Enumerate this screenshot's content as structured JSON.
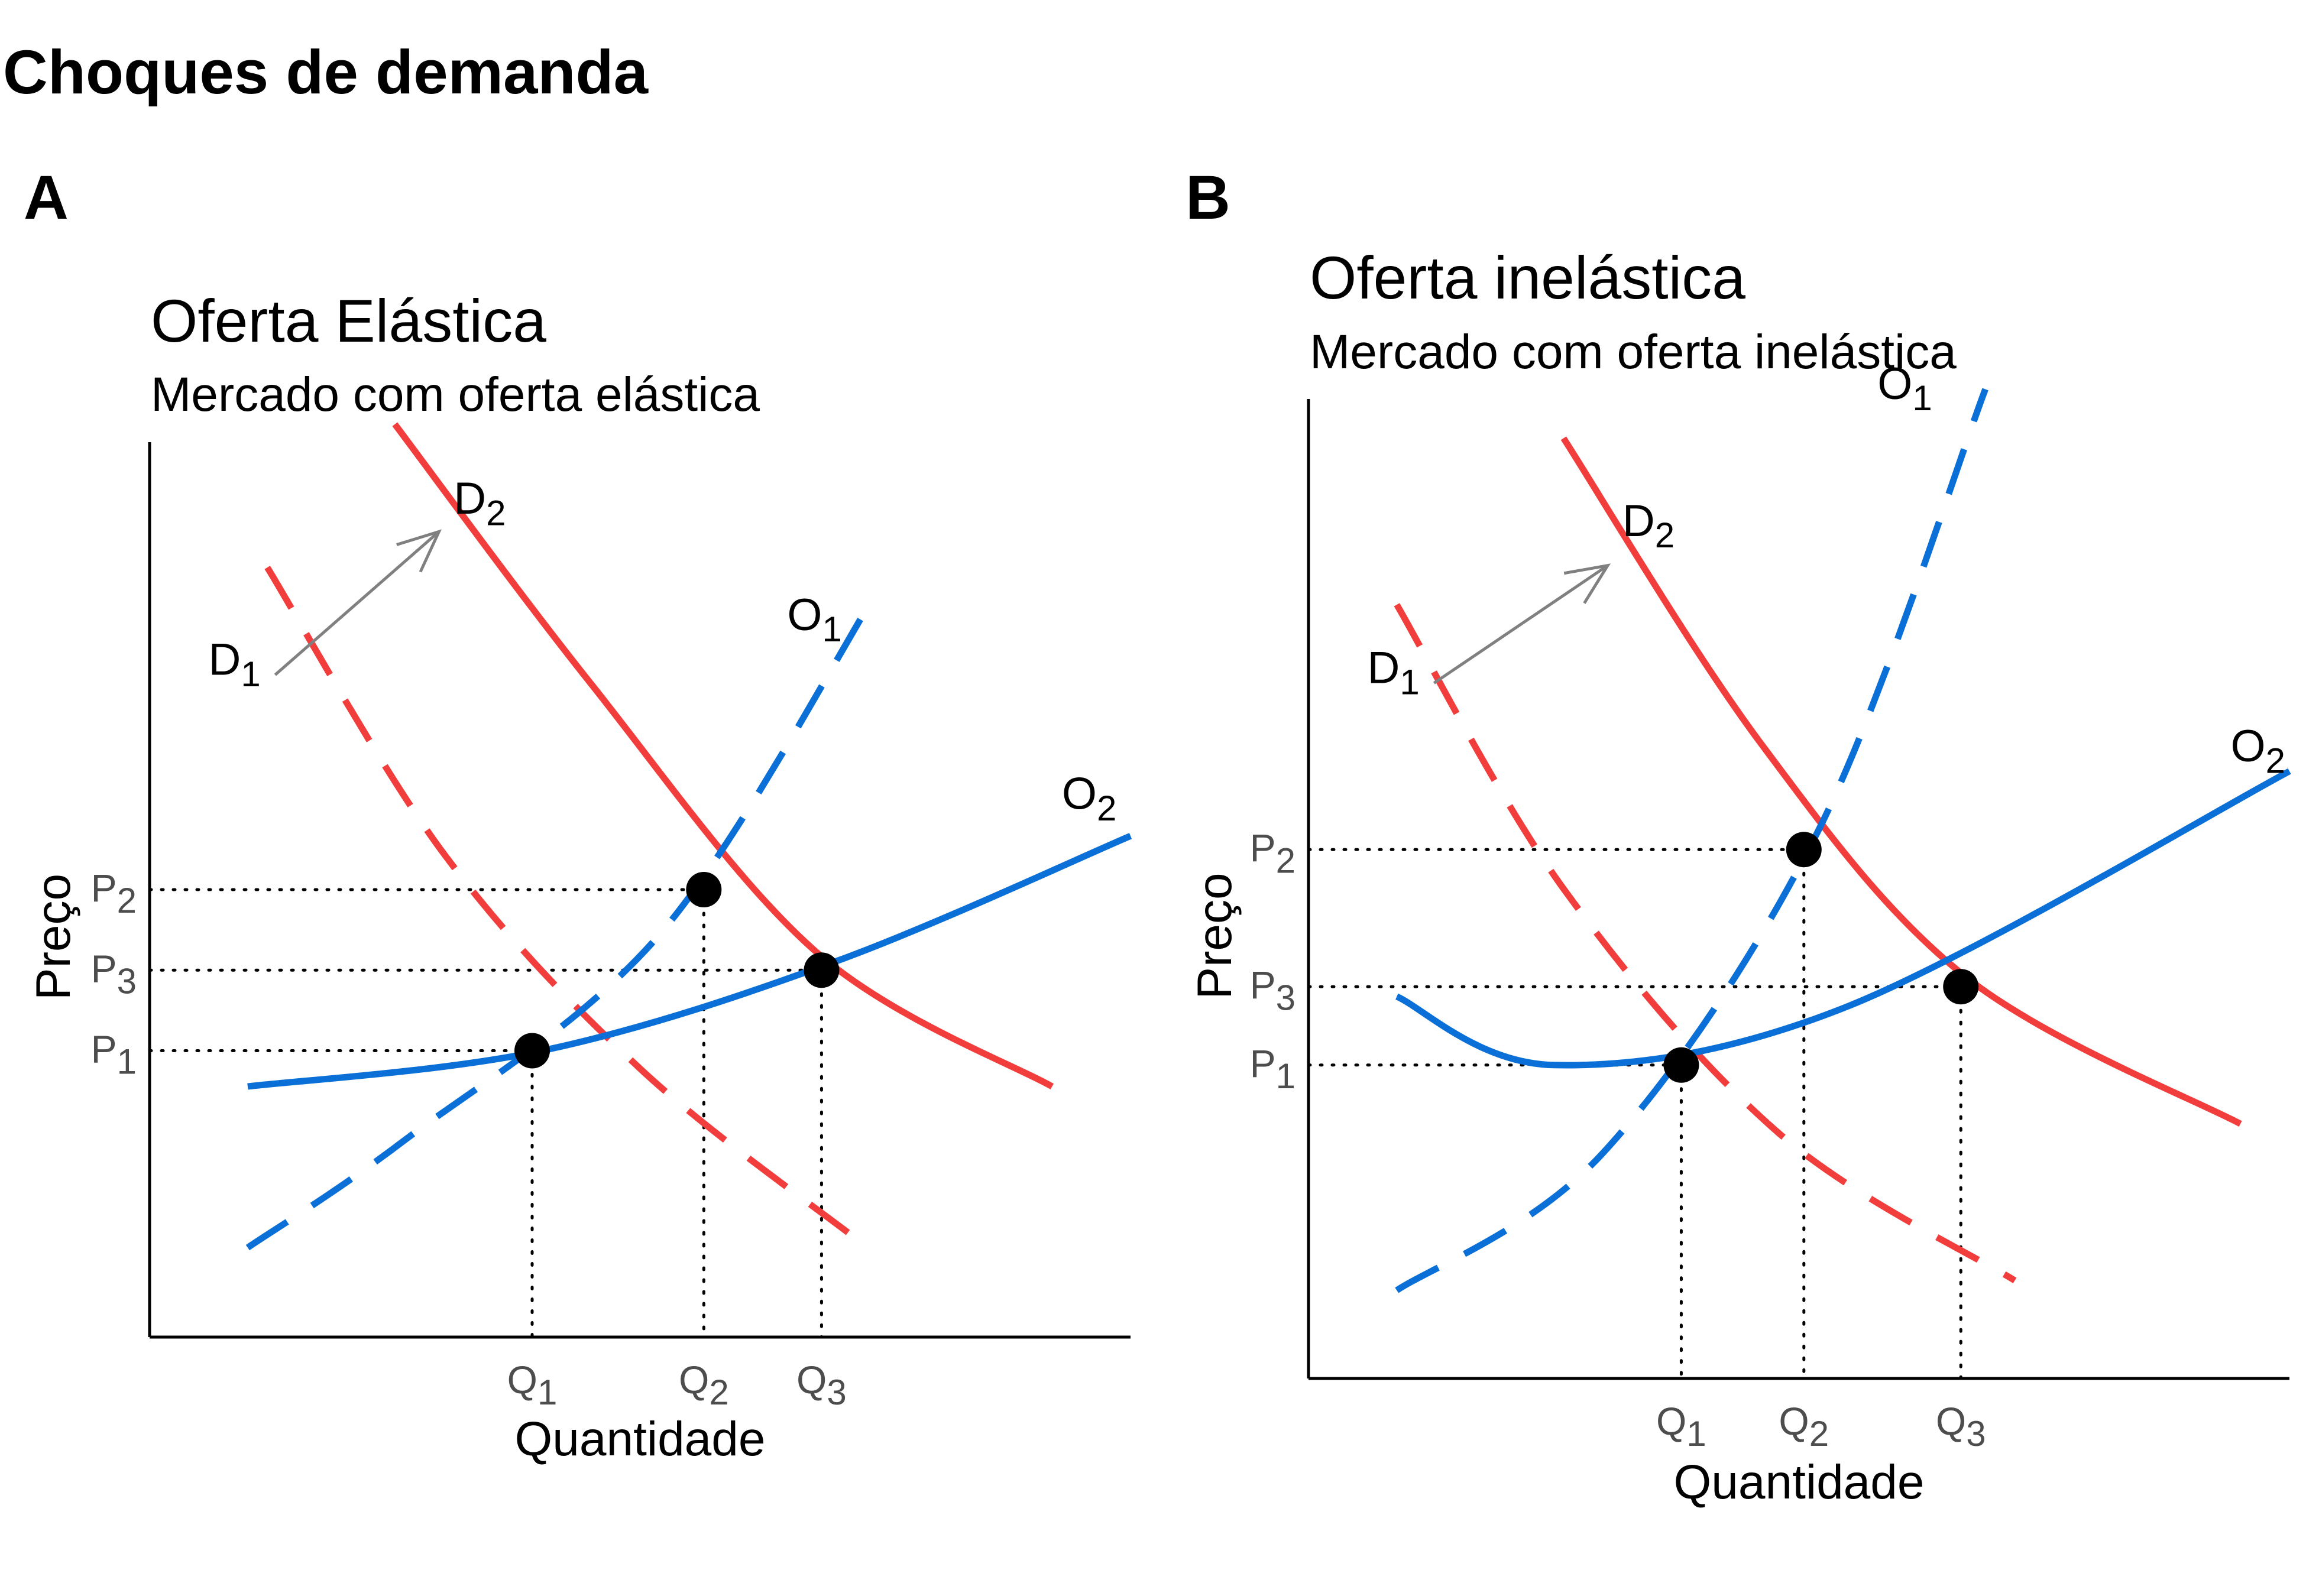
{
  "title": "Choques de demanda",
  "colors": {
    "demand": "#f23d3d",
    "supply": "#0a6fd6",
    "arrow": "#808080",
    "point": "#000000",
    "guide": "#000000"
  },
  "chart_data": [
    {
      "type": "line",
      "tag": "A",
      "title": "Oferta Elástica",
      "subtitle": "Mercado com oferta elástica",
      "xlabel": "Quantidade",
      "ylabel": "Preço",
      "xlim": [
        0,
        10
      ],
      "ylim": [
        0,
        10
      ],
      "series": [
        {
          "name": "D",
          "sub": "1",
          "style": "dashed",
          "role": "demand",
          "x": [
            1.2,
            3.0,
            5.0,
            7.2
          ],
          "y": [
            8.6,
            5.4,
            3.0,
            1.1
          ]
        },
        {
          "name": "D",
          "sub": "2",
          "style": "solid",
          "role": "demand",
          "x": [
            2.5,
            4.5,
            6.8,
            9.2
          ],
          "y": [
            10.2,
            7.3,
            4.3,
            2.8
          ]
        },
        {
          "name": "O",
          "sub": "1",
          "style": "dashed",
          "role": "supply",
          "x": [
            1.0,
            2.6,
            5.2,
            7.4
          ],
          "y": [
            1.0,
            2.2,
            4.5,
            8.3
          ]
        },
        {
          "name": "O",
          "sub": "2",
          "style": "solid",
          "role": "supply",
          "x": [
            1.0,
            4.0,
            7.0,
            10.0
          ],
          "y": [
            2.8,
            3.2,
            4.2,
            5.6
          ]
        }
      ],
      "labels": [
        {
          "name": "D",
          "sub": "1",
          "x": 0.6,
          "y": 7.4
        },
        {
          "name": "D",
          "sub": "2",
          "x": 3.1,
          "y": 9.2
        },
        {
          "name": "O",
          "sub": "1",
          "x": 6.5,
          "y": 7.9
        },
        {
          "name": "O",
          "sub": "2",
          "x": 9.3,
          "y": 5.9
        }
      ],
      "arrow": {
        "from": [
          1.28,
          7.4
        ],
        "to": [
          2.95,
          9.0
        ]
      },
      "equilibria": [
        {
          "x": 3.9,
          "y": 3.2,
          "q": "Q",
          "q_sub": "1",
          "p": "P",
          "p_sub": "1"
        },
        {
          "x": 5.65,
          "y": 5.0,
          "q": "Q",
          "q_sub": "2",
          "p": "P",
          "p_sub": "2"
        },
        {
          "x": 6.85,
          "y": 4.1,
          "q": "Q",
          "q_sub": "3",
          "p": "P",
          "p_sub": "3"
        }
      ]
    },
    {
      "type": "line",
      "tag": "B",
      "title": "Oferta inelástica",
      "subtitle": "Mercado com oferta inelástica",
      "xlabel": "Quantidade",
      "ylabel": "Preço",
      "xlim": [
        0,
        10
      ],
      "ylim": [
        0,
        10
      ],
      "series": [
        {
          "name": "D",
          "sub": "1",
          "style": "dashed",
          "role": "demand",
          "x": [
            0.9,
            2.6,
            4.8,
            7.2
          ],
          "y": [
            7.9,
            5.0,
            2.5,
            1.0
          ]
        },
        {
          "name": "D",
          "sub": "2",
          "style": "solid",
          "role": "demand",
          "x": [
            2.6,
            4.6,
            6.7,
            9.5
          ],
          "y": [
            9.6,
            6.5,
            4.1,
            2.6
          ]
        },
        {
          "name": "O",
          "sub": "1",
          "style": "dashed",
          "role": "supply",
          "x": [
            0.9,
            3.0,
            5.2,
            6.9
          ],
          "y": [
            0.9,
            2.3,
            5.6,
            10.1
          ]
        },
        {
          "name": "O",
          "sub": "2",
          "style": "solid",
          "role": "supply",
          "x": [
            0.9,
            2.5,
            5.5,
            10.0
          ],
          "y": [
            3.9,
            3.2,
            3.8,
            6.2
          ]
        }
      ],
      "labels": [
        {
          "name": "D",
          "sub": "1",
          "x": 0.6,
          "y": 7.1
        },
        {
          "name": "D",
          "sub": "2",
          "x": 3.2,
          "y": 8.6
        },
        {
          "name": "O",
          "sub": "1",
          "x": 5.8,
          "y": 10.0
        },
        {
          "name": "O",
          "sub": "2",
          "x": 9.4,
          "y": 6.3
        }
      ],
      "arrow": {
        "from": [
          1.28,
          7.1
        ],
        "to": [
          3.05,
          8.3
        ]
      },
      "equilibria": [
        {
          "x": 3.8,
          "y": 3.2,
          "q": "Q",
          "q_sub": "1",
          "p": "P",
          "p_sub": "1"
        },
        {
          "x": 5.05,
          "y": 5.4,
          "q": "Q",
          "q_sub": "2",
          "p": "P",
          "p_sub": "2"
        },
        {
          "x": 6.65,
          "y": 4.0,
          "q": "Q",
          "q_sub": "3",
          "p": "P",
          "p_sub": "3"
        }
      ]
    }
  ]
}
